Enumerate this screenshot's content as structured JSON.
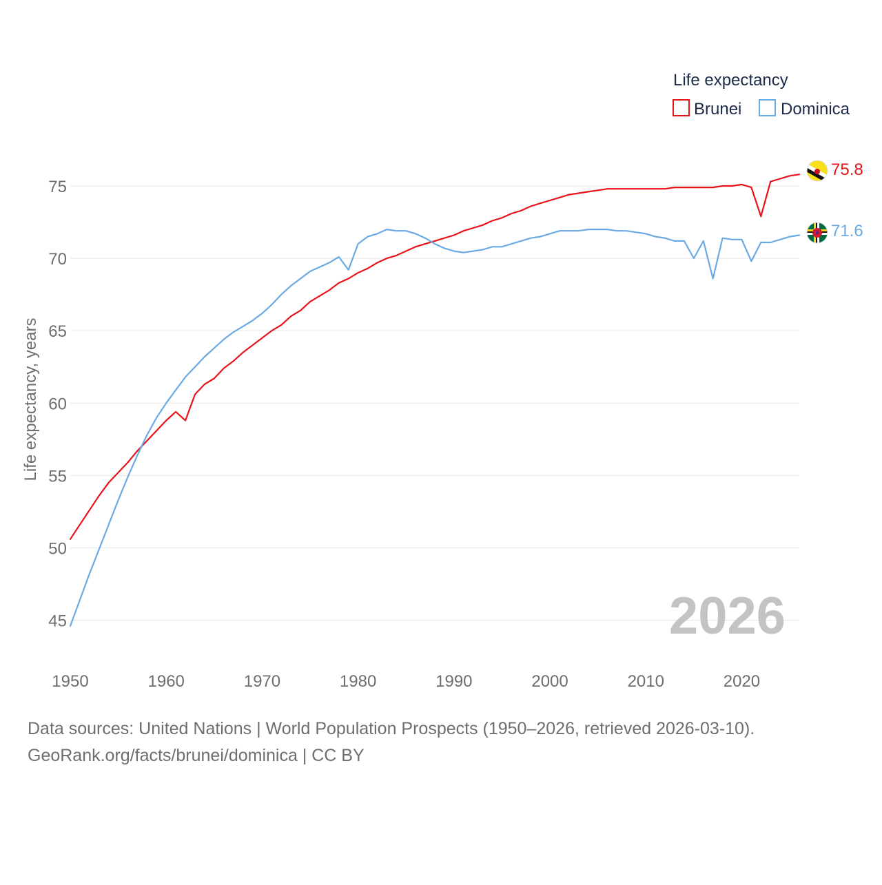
{
  "chart_data": {
    "type": "line",
    "legend_title": "Life expectancy",
    "ylabel": "Life expectancy, years",
    "xlim": [
      1950,
      2026
    ],
    "ylim": [
      43.5,
      77
    ],
    "yticks": [
      45,
      50,
      55,
      60,
      65,
      70,
      75
    ],
    "xticks": [
      1950,
      1960,
      1970,
      1980,
      1990,
      2000,
      2010,
      2020
    ],
    "year_label": "2026",
    "legend_position": "top-right",
    "x": [
      1950,
      1951,
      1952,
      1953,
      1954,
      1955,
      1956,
      1957,
      1958,
      1959,
      1960,
      1961,
      1962,
      1963,
      1964,
      1965,
      1966,
      1967,
      1968,
      1969,
      1970,
      1971,
      1972,
      1973,
      1974,
      1975,
      1976,
      1977,
      1978,
      1979,
      1980,
      1981,
      1982,
      1983,
      1984,
      1985,
      1986,
      1987,
      1988,
      1989,
      1990,
      1991,
      1992,
      1993,
      1994,
      1995,
      1996,
      1997,
      1998,
      1999,
      2000,
      2001,
      2002,
      2003,
      2004,
      2005,
      2006,
      2007,
      2008,
      2009,
      2010,
      2011,
      2012,
      2013,
      2014,
      2015,
      2016,
      2017,
      2018,
      2019,
      2020,
      2021,
      2022,
      2023,
      2024,
      2025,
      2026
    ],
    "series": [
      {
        "name": "Brunei",
        "color": "#e8121a",
        "end_label": "75.8",
        "values": [
          50.6,
          51.6,
          52.6,
          53.6,
          54.5,
          55.2,
          55.9,
          56.7,
          57.4,
          58.1,
          58.8,
          59.4,
          58.8,
          60.6,
          61.3,
          61.7,
          62.4,
          62.9,
          63.5,
          64.0,
          64.5,
          65.0,
          65.4,
          66.0,
          66.4,
          67.0,
          67.4,
          67.8,
          68.3,
          68.6,
          69.0,
          69.3,
          69.7,
          70.0,
          70.2,
          70.5,
          70.8,
          71.0,
          71.2,
          71.4,
          71.6,
          71.9,
          72.1,
          72.3,
          72.6,
          72.8,
          73.1,
          73.3,
          73.6,
          73.8,
          74.0,
          74.2,
          74.4,
          74.5,
          74.6,
          74.7,
          74.8,
          74.8,
          74.8,
          74.8,
          74.8,
          74.8,
          74.8,
          74.9,
          74.9,
          74.9,
          74.9,
          74.9,
          75.0,
          75.0,
          75.1,
          74.9,
          72.9,
          75.3,
          75.5,
          75.7,
          75.8
        ]
      },
      {
        "name": "Dominica",
        "color": "#6aaae4",
        "end_label": "71.6",
        "values": [
          44.6,
          46.4,
          48.2,
          49.9,
          51.6,
          53.3,
          54.9,
          56.4,
          57.8,
          59.0,
          60.0,
          60.9,
          61.8,
          62.5,
          63.2,
          63.8,
          64.4,
          64.9,
          65.3,
          65.7,
          66.2,
          66.8,
          67.5,
          68.1,
          68.6,
          69.1,
          69.4,
          69.7,
          70.1,
          69.2,
          71.0,
          71.5,
          71.7,
          72.0,
          71.9,
          71.9,
          71.7,
          71.4,
          71.0,
          70.7,
          70.5,
          70.4,
          70.5,
          70.6,
          70.8,
          70.8,
          71.0,
          71.2,
          71.4,
          71.5,
          71.7,
          71.9,
          71.9,
          71.9,
          72.0,
          72.0,
          72.0,
          71.9,
          71.9,
          71.8,
          71.7,
          71.5,
          71.4,
          71.2,
          71.2,
          70.0,
          71.2,
          68.6,
          71.4,
          71.3,
          71.3,
          69.8,
          71.1,
          71.1,
          71.3,
          71.5,
          71.6
        ]
      }
    ]
  },
  "source": {
    "line1": "Data sources: United Nations | World Population Prospects (1950–2026, retrieved 2026-03-10).",
    "line2": "GeoRank.org/facts/brunei/dominica | CC BY"
  }
}
